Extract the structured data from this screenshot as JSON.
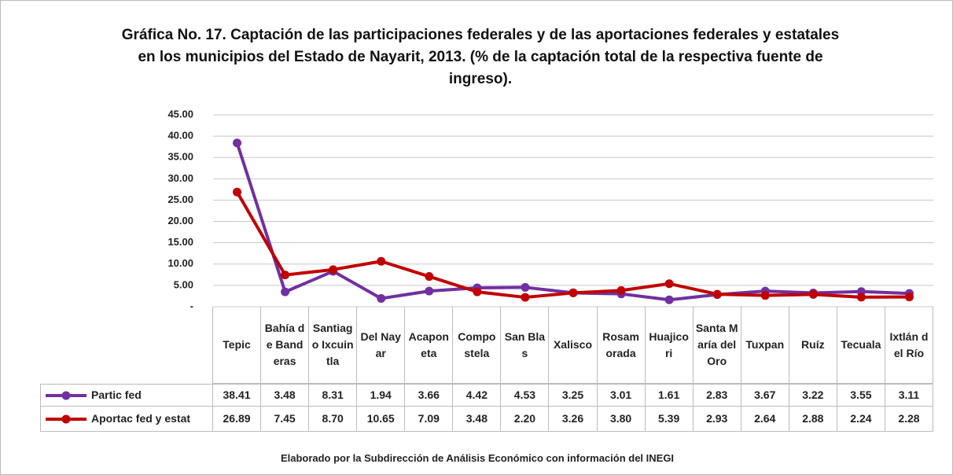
{
  "chart_data": {
    "type": "line",
    "title": "Gráfica No. 17. Captación de las participaciones federales y de las aportaciones federales y estatales en los municipios del Estado de Nayarit, 2013. (% de la captación total de la respectiva fuente de ingreso).",
    "categories": [
      "Tepic",
      "Bahía de Banderas",
      "Santiago Ixcuintla",
      "Del Nayar",
      "Acaponeta",
      "Compostela",
      "San Blas",
      "Xalisco",
      "Rosamorada",
      "Huajicori",
      "Santa María del Oro",
      "Tuxpan",
      "Ruíz",
      "Tecuala",
      "Ixtlán del Río"
    ],
    "series": [
      {
        "name": "Partic fed",
        "color": "#7030a0",
        "values": [
          38.41,
          3.48,
          8.31,
          1.94,
          3.66,
          4.42,
          4.53,
          3.25,
          3.01,
          1.61,
          2.83,
          3.67,
          3.22,
          3.55,
          3.11
        ],
        "value_labels": [
          "38.41",
          "3.48",
          "8.31",
          "1.94",
          "3.66",
          "4.42",
          "4.53",
          "3.25",
          "3.01",
          "1.61",
          "2.83",
          "3.67",
          "3.22",
          "3.55",
          "3.11"
        ]
      },
      {
        "name": "Aportac fed y estat",
        "color": "#c00000",
        "values": [
          26.89,
          7.45,
          8.7,
          10.65,
          7.09,
          3.48,
          2.2,
          3.26,
          3.8,
          5.39,
          2.93,
          2.64,
          2.88,
          2.24,
          2.28
        ],
        "value_labels": [
          "26.89",
          "7.45",
          "8.70",
          "10.65",
          "7.09",
          "3.48",
          "2.20",
          "3.26",
          "3.80",
          "5.39",
          "2.93",
          "2.64",
          "2.88",
          "2.24",
          "2.28"
        ]
      }
    ],
    "ylim": [
      0,
      45
    ],
    "yticks": [
      {
        "value": 0,
        "label": "-"
      },
      {
        "value": 5,
        "label": "5.00"
      },
      {
        "value": 10,
        "label": "10.00"
      },
      {
        "value": 15,
        "label": "15.00"
      },
      {
        "value": 20,
        "label": "20.00"
      },
      {
        "value": 25,
        "label": "25.00"
      },
      {
        "value": 30,
        "label": "30.00"
      },
      {
        "value": 35,
        "label": "35.00"
      },
      {
        "value": 40,
        "label": "40.00"
      },
      {
        "value": 45,
        "label": "45.00"
      }
    ],
    "grid": true,
    "source": "Elaborado por la Subdirección de Análisis Económico con información del INEGI"
  }
}
